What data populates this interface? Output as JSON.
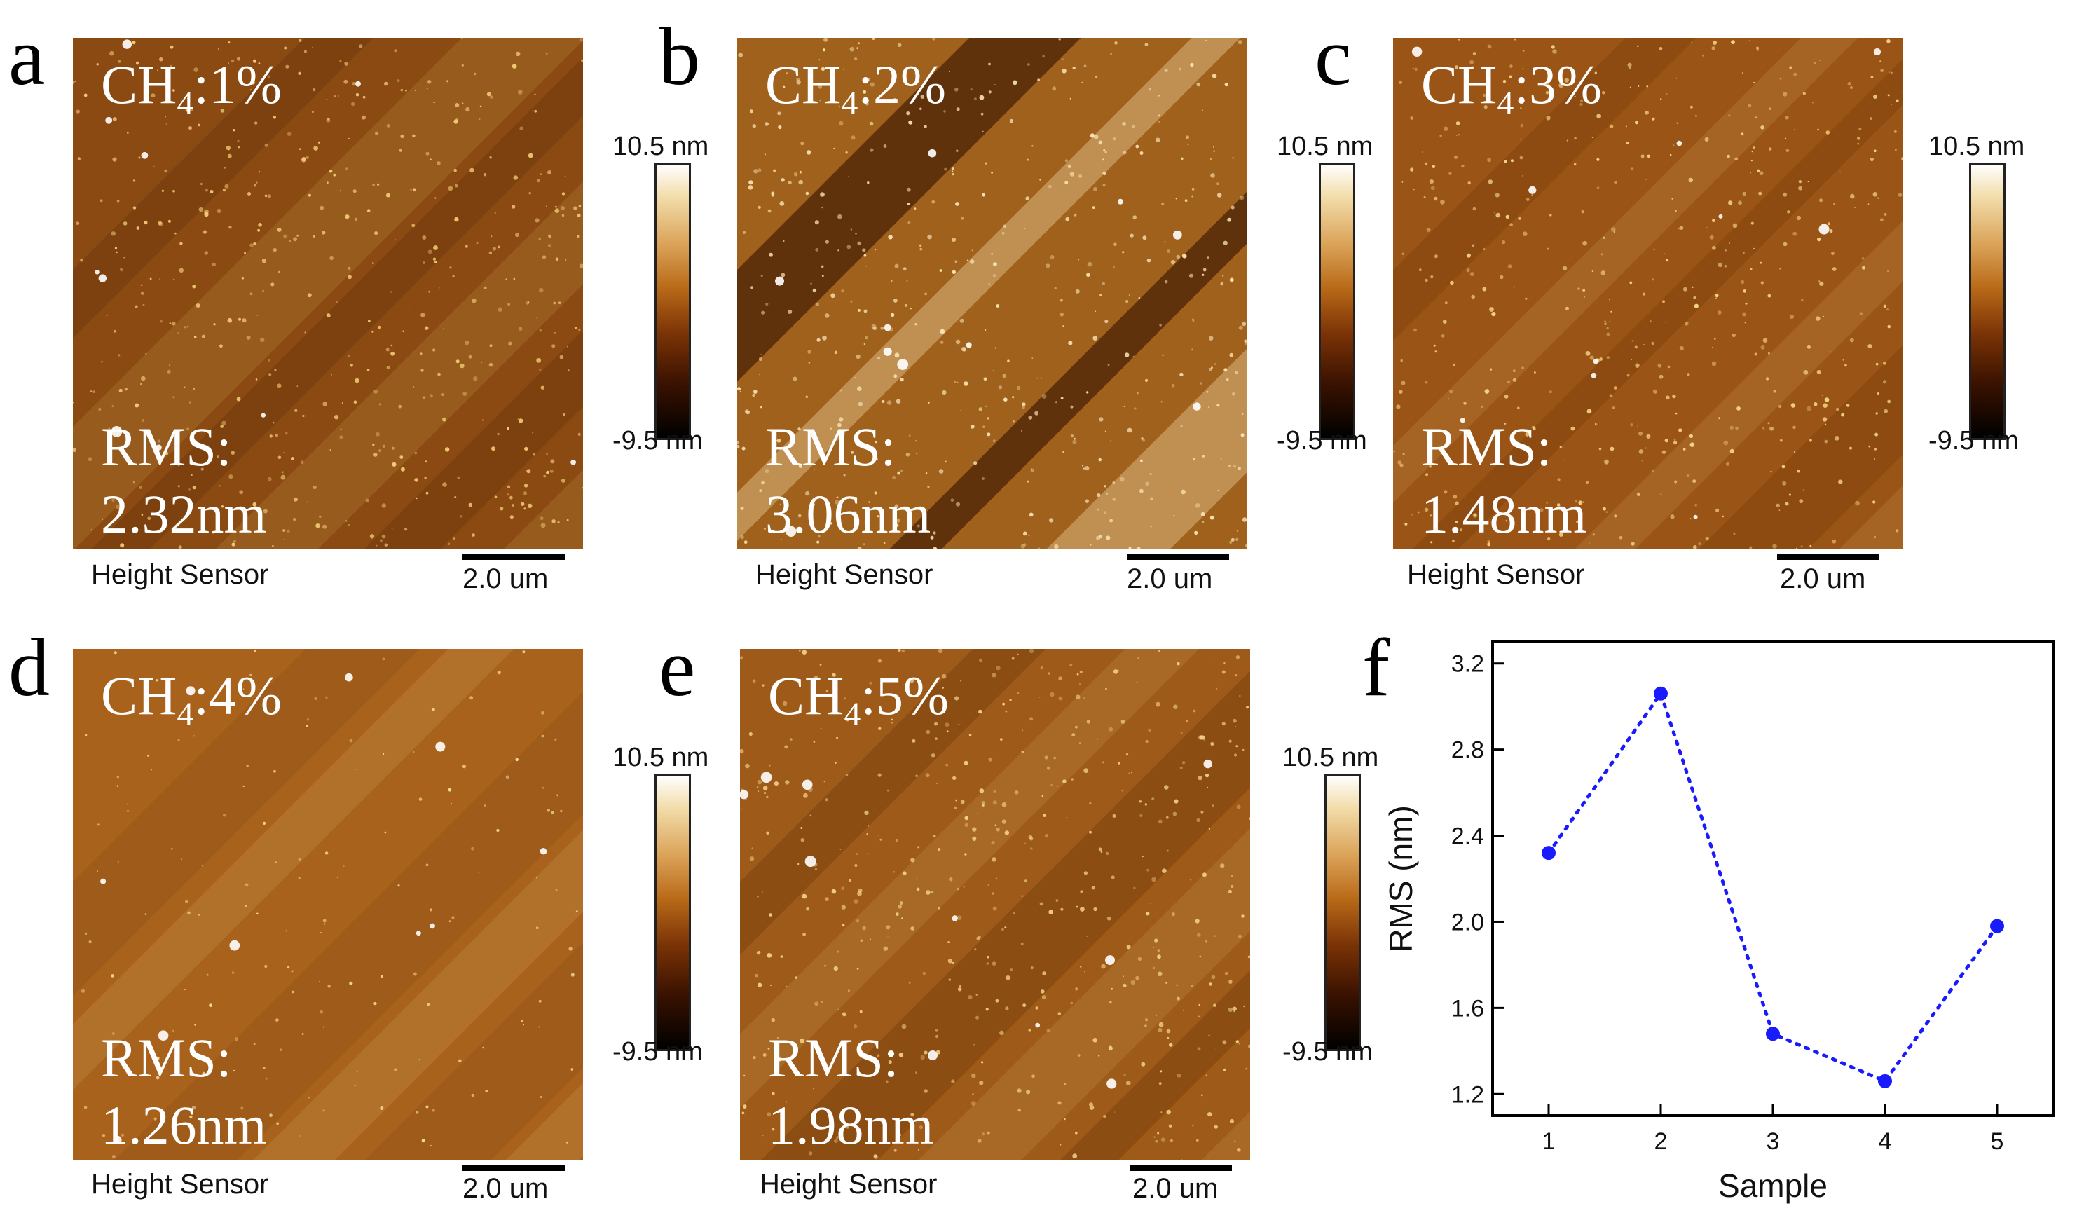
{
  "panels": [
    {
      "letter": "a",
      "ch4_prefix": "CH",
      "ch4_sub": "4",
      "ch4_value": ":1%",
      "rms_label": "RMS:",
      "rms_value": "2.32nm",
      "sensor_label": "Height Sensor",
      "scale_label": "2.0 um",
      "palette": {
        "base": "#8a4a12",
        "speck": "#f6d27a",
        "dark": "#5a2a06"
      }
    },
    {
      "letter": "b",
      "ch4_prefix": "CH",
      "ch4_sub": "4",
      "ch4_value": ":2%",
      "rms_label": "RMS:",
      "rms_value": "3.06nm",
      "sensor_label": "Height Sensor",
      "scale_label": "2.0 um",
      "palette": {
        "base": "#a0611c",
        "speck": "#fbe7b8",
        "dark": "#2b0d00"
      }
    },
    {
      "letter": "c",
      "ch4_prefix": "CH",
      "ch4_sub": "4",
      "ch4_value": ":3%",
      "rms_label": "RMS:",
      "rms_value": "1.48nm",
      "sensor_label": "Height Sensor",
      "scale_label": "2.0 um",
      "palette": {
        "base": "#9a5416",
        "speck": "#f8d98a",
        "dark": "#6b3508"
      }
    },
    {
      "letter": "d",
      "ch4_prefix": "CH",
      "ch4_sub": "4",
      "ch4_value": ":4%",
      "rms_label": "RMS:",
      "rms_value": "1.26nm",
      "sensor_label": "Height Sensor",
      "scale_label": "2.0 um",
      "palette": {
        "base": "#a8621c",
        "speck": "#f7dca0",
        "dark": "#8a4a12"
      }
    },
    {
      "letter": "e",
      "ch4_prefix": "CH",
      "ch4_sub": "4",
      "ch4_value": ":5%",
      "rms_label": "RMS:",
      "rms_value": "1.98nm",
      "sensor_label": "Height Sensor",
      "scale_label": "2.0 um",
      "palette": {
        "base": "#9e5a18",
        "speck": "#f5d48a",
        "dark": "#5e2c06"
      }
    }
  ],
  "colorbars": [
    {
      "top_label": "10.5 nm",
      "bottom_label": "-9.5 nm"
    },
    {
      "top_label": "10.5 nm",
      "bottom_label": "-9.5 nm"
    },
    {
      "top_label": "10.5 nm",
      "bottom_label": "-9.5 nm"
    },
    {
      "top_label": "10.5 nm",
      "bottom_label": "-9.5 nm"
    }
  ],
  "plot_letter": "f",
  "chart_data": {
    "type": "scatter",
    "x": [
      1,
      2,
      3,
      4,
      5
    ],
    "y": [
      2.32,
      3.06,
      1.48,
      1.26,
      1.98
    ],
    "xlabel": "Sample",
    "ylabel": "RMS (nm)",
    "xlim": [
      0.5,
      5.5
    ],
    "ylim": [
      1.1,
      3.3
    ],
    "xticks": [
      "1",
      "2",
      "3",
      "4",
      "5"
    ],
    "yticks": [
      "1.2",
      "1.6",
      "2.0",
      "2.4",
      "2.8",
      "3.2"
    ],
    "line_style": "dotted",
    "color": "#1a1aff",
    "grid": false
  }
}
